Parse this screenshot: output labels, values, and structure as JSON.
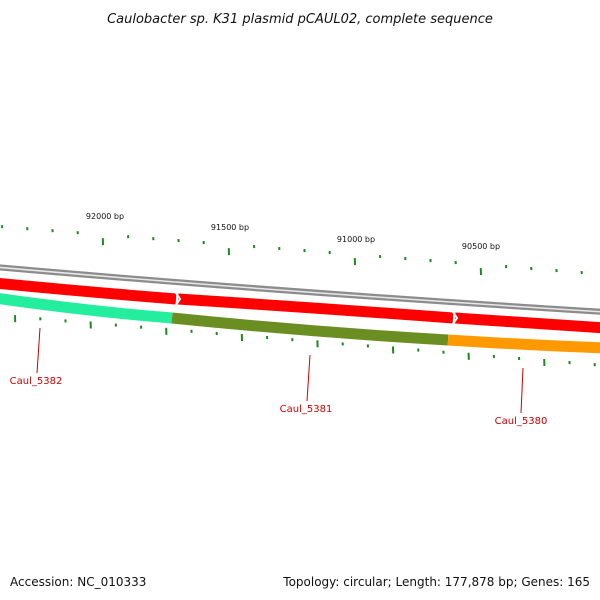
{
  "title": "Caulobacter sp. K31 plasmid pCAUL02, complete sequence",
  "footer": {
    "accession": "Accession: NC_010333",
    "summary": "Topology: circular; Length: 177,878 bp; Genes: 165"
  },
  "ruler": {
    "labels": [
      "92000 bp",
      "91500 bp",
      "91000 bp",
      "90500 bp"
    ]
  },
  "colors": {
    "backbone": "#8c8c8c",
    "strand": "#ff0000",
    "tick": "#1a8a1a",
    "label": "#cc0000",
    "Caul_5382": "#22ee9e",
    "Caul_5381": "#6b8e23",
    "Caul_5380": "#ff9900"
  },
  "genes": [
    {
      "name": "Caul_5382"
    },
    {
      "name": "Caul_5381"
    },
    {
      "name": "Caul_5380"
    }
  ]
}
